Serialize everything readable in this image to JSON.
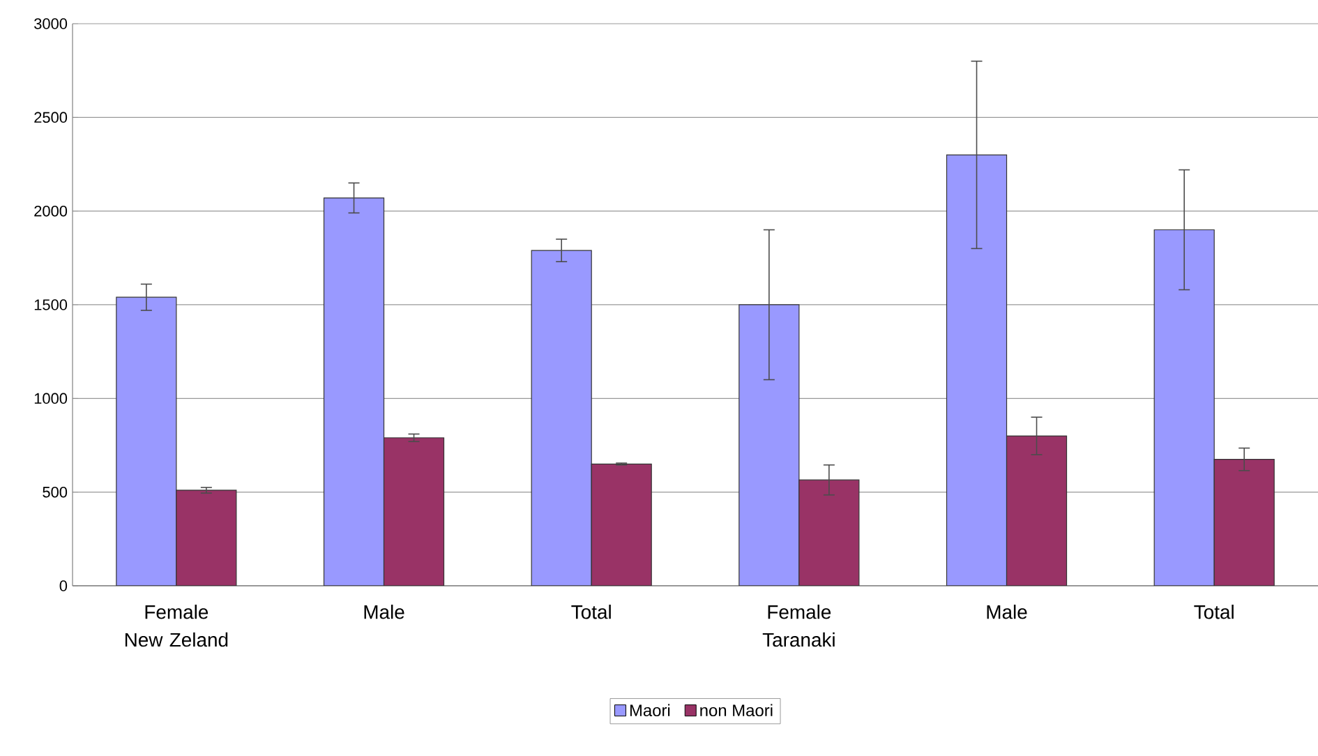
{
  "chart_data": {
    "type": "bar",
    "categories": [
      "Female New Zeland",
      "Male",
      "Total",
      "Female Taranaki",
      "Male",
      "Total"
    ],
    "series": [
      {
        "name": "Maori",
        "color": "#9999ff",
        "values": [
          1540,
          2070,
          1790,
          1500,
          2300,
          1900
        ],
        "errors": [
          70,
          80,
          60,
          400,
          500,
          320
        ]
      },
      {
        "name": "non Maori",
        "color": "#993366",
        "values": [
          510,
          790,
          650,
          565,
          800,
          675
        ],
        "errors": [
          15,
          20,
          5,
          80,
          100,
          60
        ]
      }
    ],
    "ylim": [
      0,
      3000
    ],
    "yticks": [
      0,
      500,
      1000,
      1500,
      2000,
      2500,
      3000
    ],
    "grid": "y",
    "legend": "bottom"
  }
}
